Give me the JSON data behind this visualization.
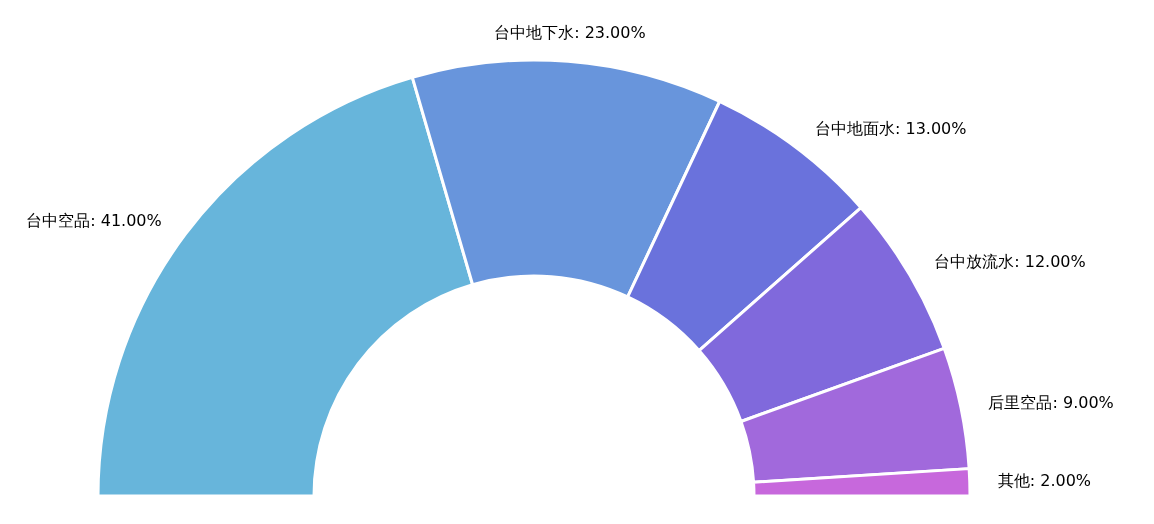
{
  "chart_data": {
    "type": "donut",
    "categories": [
      "台中空品",
      "台中地下水",
      "台中地面水",
      "台中放流水",
      "后里空品",
      "其他"
    ],
    "values": [
      41,
      23,
      13,
      12,
      9,
      2
    ],
    "value_labels": [
      "41.00%",
      "23.00%",
      "13.00%",
      "12.00%",
      "9.00%",
      "2.00%"
    ],
    "colors": [
      "#67b5db",
      "#6895dc",
      "#6a72dc",
      "#8069dc",
      "#a169dc",
      "#c768dc"
    ]
  }
}
